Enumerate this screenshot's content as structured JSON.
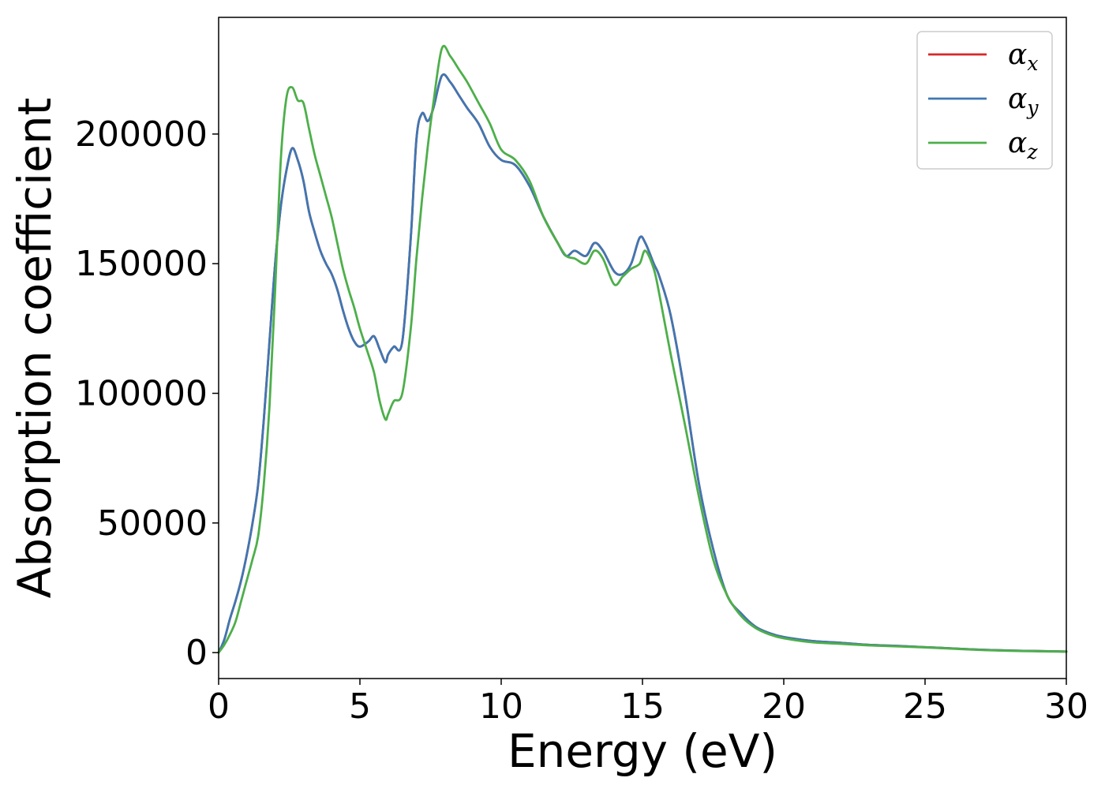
{
  "chart_data": {
    "type": "line",
    "title": "",
    "xlabel": "Energy (eV)",
    "ylabel": "Absorption coefficient",
    "xlim": [
      0,
      30
    ],
    "ylim": [
      -10000,
      245000
    ],
    "xticks": [
      0,
      5,
      10,
      15,
      20,
      25,
      30
    ],
    "yticks": [
      0,
      50000,
      100000,
      150000,
      200000
    ],
    "grid": false,
    "legend": {
      "placement": "top-right"
    },
    "series": [
      {
        "name": "α",
        "subscript": "x",
        "color": "#d62728",
        "x": [
          0,
          0.2,
          0.4,
          0.6,
          0.8,
          1.0,
          1.2,
          1.4,
          1.6,
          1.8,
          2.0,
          2.2,
          2.4,
          2.6,
          2.8,
          3.0,
          3.2,
          3.4,
          3.6,
          3.8,
          4.0,
          4.2,
          4.4,
          4.6,
          4.8,
          5.0,
          5.3,
          5.5,
          5.7,
          5.9,
          6.0,
          6.2,
          6.5,
          6.8,
          7.0,
          7.2,
          7.4,
          7.6,
          7.9,
          8.2,
          8.5,
          8.8,
          9.2,
          9.6,
          10.0,
          10.5,
          11.0,
          11.5,
          12.0,
          12.3,
          12.6,
          13.0,
          13.3,
          13.6,
          14.0,
          14.3,
          14.6,
          14.9,
          15.1,
          15.4,
          15.6,
          16.0,
          16.5,
          17.0,
          17.5,
          18.0,
          18.5,
          19.0,
          19.5,
          20.0,
          21.0,
          22.0,
          23.0,
          24.0,
          25.0,
          26.0,
          27.0,
          28.0,
          29.0,
          30.0
        ],
        "y": [
          0,
          5000,
          13000,
          20000,
          28000,
          38000,
          50000,
          65000,
          90000,
          120000,
          150000,
          172000,
          186000,
          194500,
          190000,
          182000,
          170000,
          162000,
          155000,
          150000,
          146000,
          140000,
          132000,
          125000,
          120000,
          118000,
          120000,
          122000,
          117000,
          112000,
          115000,
          118000,
          120000,
          160000,
          198000,
          208000,
          205000,
          210000,
          222500,
          220000,
          215000,
          210000,
          204000,
          195000,
          190000,
          188000,
          180000,
          168000,
          158000,
          153000,
          155000,
          153000,
          158000,
          155000,
          147000,
          146000,
          150000,
          160000,
          158000,
          150000,
          145000,
          130000,
          100000,
          65000,
          40000,
          22000,
          15000,
          10000,
          7500,
          6000,
          4500,
          3800,
          3000,
          2600,
          2100,
          1600,
          1100,
          800,
          600,
          400
        ]
      },
      {
        "name": "α",
        "subscript": "y",
        "color": "#3f77b2",
        "x": [
          0,
          0.2,
          0.4,
          0.6,
          0.8,
          1.0,
          1.2,
          1.4,
          1.6,
          1.8,
          2.0,
          2.2,
          2.4,
          2.6,
          2.8,
          3.0,
          3.2,
          3.4,
          3.6,
          3.8,
          4.0,
          4.2,
          4.4,
          4.6,
          4.8,
          5.0,
          5.3,
          5.5,
          5.7,
          5.9,
          6.0,
          6.2,
          6.5,
          6.8,
          7.0,
          7.2,
          7.4,
          7.6,
          7.9,
          8.2,
          8.5,
          8.8,
          9.2,
          9.6,
          10.0,
          10.5,
          11.0,
          11.5,
          12.0,
          12.3,
          12.6,
          13.0,
          13.3,
          13.6,
          14.0,
          14.3,
          14.6,
          14.9,
          15.1,
          15.4,
          15.6,
          16.0,
          16.5,
          17.0,
          17.5,
          18.0,
          18.5,
          19.0,
          19.5,
          20.0,
          21.0,
          22.0,
          23.0,
          24.0,
          25.0,
          26.0,
          27.0,
          28.0,
          29.0,
          30.0
        ],
        "y": [
          0,
          5000,
          13000,
          20000,
          28000,
          38000,
          50000,
          65000,
          90000,
          120000,
          150000,
          172000,
          186000,
          194500,
          190000,
          182000,
          170000,
          162000,
          155000,
          150000,
          146000,
          140000,
          132000,
          125000,
          120000,
          118000,
          120000,
          122000,
          117000,
          112000,
          115000,
          118000,
          120000,
          160000,
          198000,
          208000,
          205000,
          210000,
          222500,
          220000,
          215000,
          210000,
          204000,
          195000,
          190000,
          188000,
          180000,
          168000,
          158000,
          153000,
          155000,
          153000,
          158000,
          155000,
          147000,
          146000,
          150000,
          160000,
          158000,
          150000,
          145000,
          130000,
          100000,
          65000,
          40000,
          22000,
          15000,
          10000,
          7500,
          6000,
          4500,
          3800,
          3000,
          2600,
          2100,
          1600,
          1100,
          800,
          600,
          400
        ]
      },
      {
        "name": "α",
        "subscript": "z",
        "color": "#4daf4a",
        "x": [
          0,
          0.2,
          0.4,
          0.6,
          0.8,
          1.0,
          1.2,
          1.4,
          1.6,
          1.8,
          2.0,
          2.2,
          2.4,
          2.6,
          2.8,
          3.0,
          3.2,
          3.4,
          3.6,
          3.8,
          4.0,
          4.2,
          4.4,
          4.6,
          4.8,
          5.0,
          5.3,
          5.5,
          5.7,
          5.9,
          6.0,
          6.2,
          6.5,
          6.8,
          7.0,
          7.2,
          7.4,
          7.6,
          7.9,
          8.2,
          8.5,
          8.8,
          9.2,
          9.6,
          10.0,
          10.5,
          11.0,
          11.5,
          12.0,
          12.3,
          12.6,
          13.0,
          13.3,
          13.6,
          14.0,
          14.3,
          14.6,
          14.9,
          15.1,
          15.4,
          15.6,
          16.0,
          16.5,
          17.0,
          17.5,
          18.0,
          18.5,
          19.0,
          19.5,
          20.0,
          21.0,
          22.0,
          23.0,
          24.0,
          25.0,
          26.0,
          27.0,
          28.0,
          29.0,
          30.0
        ],
        "y": [
          0,
          3000,
          7000,
          12000,
          20000,
          28000,
          36000,
          45000,
          65000,
          95000,
          140000,
          190000,
          214000,
          218000,
          213000,
          212000,
          202000,
          192000,
          184000,
          176000,
          168000,
          158000,
          148000,
          140000,
          133000,
          125000,
          115000,
          108000,
          97000,
          90000,
          92000,
          97000,
          100000,
          125000,
          152000,
          175000,
          195000,
          212000,
          233000,
          230000,
          225000,
          220000,
          212000,
          204000,
          194000,
          190000,
          182000,
          168000,
          158000,
          153000,
          152000,
          150000,
          155000,
          152000,
          142000,
          145000,
          148000,
          150000,
          155000,
          148000,
          138000,
          115000,
          88000,
          60000,
          36000,
          22000,
          14000,
          9500,
          7000,
          5500,
          4000,
          3400,
          2800,
          2400,
          2000,
          1500,
          1000,
          700,
          500,
          350
        ]
      }
    ]
  }
}
